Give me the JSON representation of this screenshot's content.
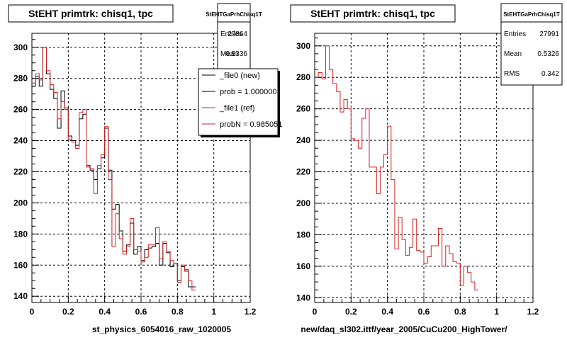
{
  "footer_note": "",
  "chart_data": [
    {
      "type": "histogram",
      "title": "StEHT primtrk: chisq1, tpc",
      "xlabel": "st_physics_6054016_raw_1020005",
      "ylabel": "",
      "xlim": [
        0,
        1.2
      ],
      "ylim": [
        136,
        309
      ],
      "x_ticks": [
        0,
        0.2,
        0.4,
        0.6,
        0.8,
        1,
        1.2
      ],
      "x_tick_labels": [
        "0",
        "0.2",
        "0.4",
        "0.6",
        "0.8",
        "1",
        "1.2"
      ],
      "y_ticks": [
        140,
        160,
        180,
        200,
        220,
        240,
        260,
        280,
        300
      ],
      "y_tick_labels": [
        "140",
        "160",
        "180",
        "200",
        "220",
        "240",
        "260",
        "280",
        "300"
      ],
      "grid": true,
      "bin_width": 0.02,
      "stats": {
        "name": "StEHTGaPrhChisq1T",
        "entries_label": "Entries",
        "entries": "27864",
        "mean_label": "Mean",
        "mean": "0.5336"
      },
      "legend": {
        "position": "top-right",
        "entries": [
          {
            "label": "_file0 (new)",
            "color": "#000000"
          },
          {
            "label": "prob = 1.000000",
            "color": "#000000"
          },
          {
            "label": "_file1 (ref)",
            "color": "#d42020"
          },
          {
            "label": "probN = 0.985051",
            "color": "#d42020"
          }
        ]
      },
      "series": [
        {
          "name": "_file0 (new)",
          "color": "#000000",
          "values": [
            275,
            281,
            275,
            300,
            283,
            273,
            267,
            248,
            272,
            261,
            243,
            240,
            237,
            254,
            257,
            224,
            221,
            215,
            222,
            229,
            248,
            221,
            196,
            199,
            182,
            169,
            173,
            187,
            167,
            172,
            163,
            170,
            171,
            172,
            174,
            160,
            174,
            168,
            159,
            161,
            150,
            159,
            157,
            146,
            146
          ]
        },
        {
          "name": "_file1 (ref)",
          "color": "#d42020",
          "values": [
            277,
            283,
            279,
            300,
            285,
            276,
            271,
            254,
            265,
            260,
            241,
            239,
            235,
            258,
            260,
            223,
            222,
            206,
            224,
            231,
            249,
            215,
            172,
            193,
            177,
            167,
            172,
            190,
            170,
            169,
            162,
            165,
            173,
            173,
            184,
            164,
            175,
            169,
            163,
            161,
            149,
            160,
            156,
            150,
            144
          ]
        }
      ]
    },
    {
      "type": "histogram",
      "title": "StEHT primtrk: chisq1, tpc",
      "xlabel": "new/daq_sl302.ittf/year_2005/CuCu200_HighTower/",
      "ylabel": "",
      "xlim": [
        0,
        1.2
      ],
      "ylim": [
        137,
        308
      ],
      "x_ticks": [
        0,
        0.2,
        0.4,
        0.6,
        0.8,
        1,
        1.2
      ],
      "x_tick_labels": [
        "0",
        "0.2",
        "0.4",
        "0.6",
        "0.8",
        "1",
        "1.2"
      ],
      "y_ticks": [
        140,
        160,
        180,
        200,
        220,
        240,
        260,
        280,
        300
      ],
      "y_tick_labels": [
        "140",
        "160",
        "180",
        "200",
        "220",
        "240",
        "260",
        "280",
        "300"
      ],
      "grid": true,
      "bin_width": 0.02,
      "stats": {
        "name": "StEHTGaPrhChisq1T",
        "entries_label": "Entries",
        "entries": "27991",
        "mean_label": "Mean",
        "mean": "0.5326",
        "rms_label": "RMS",
        "rms": "0.342"
      },
      "series": [
        {
          "name": "",
          "color": "#d42020",
          "values": [
            280,
            283,
            279,
            300,
            285,
            276,
            271,
            258,
            266,
            260,
            241,
            240,
            235,
            254,
            260,
            223,
            223,
            206,
            223,
            231,
            249,
            215,
            171,
            191,
            177,
            167,
            172,
            190,
            170,
            169,
            162,
            166,
            173,
            173,
            184,
            160,
            173,
            168,
            163,
            162,
            148,
            160,
            156,
            150,
            145
          ]
        }
      ]
    }
  ]
}
